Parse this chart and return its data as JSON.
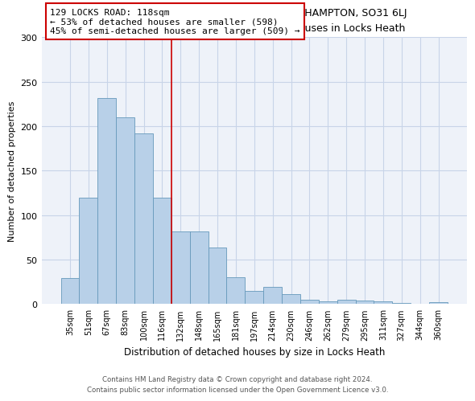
{
  "title1": "129, LOCKS ROAD, LOCKS HEATH, SOUTHAMPTON, SO31 6LJ",
  "title2": "Size of property relative to detached houses in Locks Heath",
  "xlabel": "Distribution of detached houses by size in Locks Heath",
  "ylabel": "Number of detached properties",
  "footer1": "Contains HM Land Registry data © Crown copyright and database right 2024.",
  "footer2": "Contains public sector information licensed under the Open Government Licence v3.0.",
  "bar_color": "#b8d0e8",
  "bar_edge_color": "#6699bb",
  "grid_color": "#c8d4e8",
  "background_color": "#eef2f9",
  "annotation_line_color": "#cc0000",
  "annotation_box_line_color": "#cc0000",
  "annotation_text": "129 LOCKS ROAD: 118sqm\n← 53% of detached houses are smaller (598)\n45% of semi-detached houses are larger (509) →",
  "categories": [
    "35sqm",
    "51sqm",
    "67sqm",
    "83sqm",
    "100sqm",
    "116sqm",
    "132sqm",
    "148sqm",
    "165sqm",
    "181sqm",
    "197sqm",
    "214sqm",
    "230sqm",
    "246sqm",
    "262sqm",
    "279sqm",
    "295sqm",
    "311sqm",
    "327sqm",
    "344sqm",
    "360sqm"
  ],
  "values": [
    29,
    120,
    232,
    210,
    192,
    120,
    82,
    82,
    64,
    30,
    15,
    19,
    11,
    5,
    3,
    5,
    4,
    3,
    1,
    0,
    2
  ],
  "ylim": [
    0,
    300
  ],
  "vline_x": 5.5,
  "yticks": [
    0,
    50,
    100,
    150,
    200,
    250,
    300
  ]
}
